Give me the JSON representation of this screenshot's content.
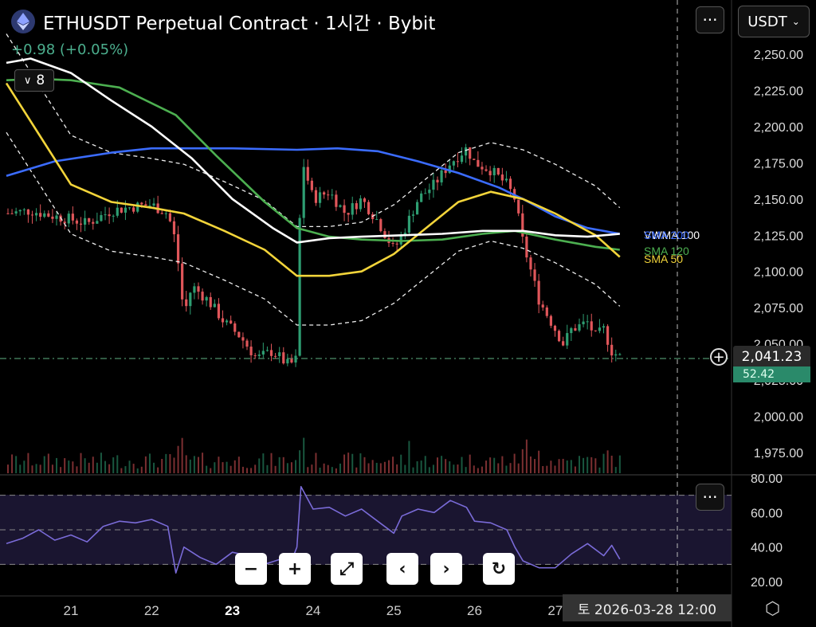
{
  "header": {
    "title": "ETHUSDT Perpetual Contract · 1시간 · Bybit",
    "change": "+0.98 (+0.05%)",
    "interval_label": "8",
    "currency_label": "USDT",
    "menu_symbol": "···"
  },
  "price_axis": {
    "ticks": [
      "2,250.00",
      "2,225.00",
      "2,200.00",
      "2,175.00",
      "2,150.00",
      "2,125.00",
      "2,100.00",
      "2,075.00",
      "2,050.00",
      "2,025.00",
      "2,000.00",
      "1,975.00"
    ],
    "ylim": [
      1965,
      2262
    ],
    "current_price": "2,041.23",
    "volume_label": "52.42"
  },
  "rsi_axis": {
    "ticks": [
      "80.00",
      "60.00",
      "40.00",
      "20.00"
    ],
    "ylim": [
      17,
      82
    ],
    "bands": [
      70,
      50,
      30
    ]
  },
  "time_axis": {
    "labels": [
      {
        "text": "21",
        "day": 21,
        "bold": false
      },
      {
        "text": "22",
        "day": 22,
        "bold": false
      },
      {
        "text": "23",
        "day": 23,
        "bold": true
      },
      {
        "text": "24",
        "day": 24,
        "bold": false
      },
      {
        "text": "25",
        "day": 25,
        "bold": false
      },
      {
        "text": "26",
        "day": 26,
        "bold": false
      },
      {
        "text": "27",
        "day": 27,
        "bold": false
      }
    ],
    "crosshair_label": "토 2026-03-28  12:00"
  },
  "legend": [
    {
      "name": "VWMA 100",
      "color": "#ffffff"
    },
    {
      "name": "SMA 200",
      "color": "#3b6cff"
    },
    {
      "name": "SMA 120",
      "color": "#4caf50"
    },
    {
      "name": "SMA 50",
      "color": "#f2d43a"
    }
  ],
  "toolbar": {
    "zoom_out": "−",
    "zoom_in": "+",
    "fullscreen": "⤢",
    "scroll_left": "‹",
    "scroll_right": "›",
    "reset": "↻"
  },
  "colors": {
    "up": "#2e9e72",
    "down": "#e0565a",
    "sma200": "#3b6cff",
    "sma120": "#4caf50",
    "sma50": "#f2d43a",
    "vwma100": "#ffffff",
    "rsi": "#7a6bd8"
  },
  "chart_data": [
    {
      "type": "line",
      "title": "",
      "x_unit": "day of March 2026",
      "xlim": [
        20.15,
        28.6
      ],
      "ylim": [
        1965,
        2262
      ],
      "series": [
        {
          "name": "price",
          "points": [
            [
              20.2,
              2140
            ],
            [
              20.5,
              2142
            ],
            [
              20.8,
              2138
            ],
            [
              21.0,
              2136
            ],
            [
              21.2,
              2133
            ],
            [
              21.5,
              2142
            ],
            [
              21.8,
              2145
            ],
            [
              22.0,
              2146
            ],
            [
              22.2,
              2140
            ],
            [
              22.3,
              2120
            ],
            [
              22.4,
              2070
            ],
            [
              22.5,
              2090
            ],
            [
              22.7,
              2080
            ],
            [
              22.9,
              2065
            ],
            [
              23.1,
              2055
            ],
            [
              23.3,
              2040
            ],
            [
              23.5,
              2045
            ],
            [
              23.7,
              2035
            ],
            [
              23.8,
              2040
            ],
            [
              23.85,
              2180
            ],
            [
              24.0,
              2150
            ],
            [
              24.2,
              2155
            ],
            [
              24.4,
              2140
            ],
            [
              24.6,
              2150
            ],
            [
              24.8,
              2135
            ],
            [
              25.0,
              2115
            ],
            [
              25.1,
              2125
            ],
            [
              25.3,
              2150
            ],
            [
              25.5,
              2160
            ],
            [
              25.7,
              2175
            ],
            [
              25.9,
              2185
            ],
            [
              26.0,
              2175
            ],
            [
              26.2,
              2170
            ],
            [
              26.4,
              2160
            ],
            [
              26.5,
              2150
            ],
            [
              26.6,
              2120
            ],
            [
              26.7,
              2100
            ],
            [
              26.8,
              2080
            ],
            [
              26.9,
              2070
            ],
            [
              27.0,
              2060
            ],
            [
              27.1,
              2050
            ],
            [
              27.2,
              2060
            ],
            [
              27.4,
              2065
            ],
            [
              27.5,
              2055
            ],
            [
              27.6,
              2060
            ],
            [
              27.7,
              2045
            ],
            [
              27.8,
              2041
            ]
          ]
        },
        {
          "name": "SMA 200",
          "points": [
            [
              20.2,
              2166
            ],
            [
              20.8,
              2176
            ],
            [
              21.5,
              2182
            ],
            [
              22.0,
              2185
            ],
            [
              23.0,
              2185
            ],
            [
              23.8,
              2184
            ],
            [
              24.3,
              2185
            ],
            [
              24.8,
              2183
            ],
            [
              25.3,
              2176
            ],
            [
              25.8,
              2168
            ],
            [
              26.3,
              2158
            ],
            [
              26.6,
              2150
            ],
            [
              27.0,
              2138
            ],
            [
              27.4,
              2130
            ],
            [
              27.8,
              2126
            ]
          ]
        },
        {
          "name": "SMA 120",
          "points": [
            [
              20.2,
              2232
            ],
            [
              20.6,
              2233
            ],
            [
              21.0,
              2232
            ],
            [
              21.6,
              2227
            ],
            [
              22.3,
              2208
            ],
            [
              22.8,
              2180
            ],
            [
              23.4,
              2148
            ],
            [
              23.8,
              2130
            ],
            [
              24.2,
              2124
            ],
            [
              24.6,
              2122
            ],
            [
              25.1,
              2121
            ],
            [
              25.6,
              2122
            ],
            [
              26.1,
              2126
            ],
            [
              26.5,
              2128
            ],
            [
              27.0,
              2122
            ],
            [
              27.5,
              2117
            ],
            [
              27.8,
              2115
            ]
          ]
        },
        {
          "name": "SMA 50",
          "points": [
            [
              20.2,
              2230
            ],
            [
              20.6,
              2195
            ],
            [
              21.0,
              2160
            ],
            [
              21.5,
              2148
            ],
            [
              22.0,
              2144
            ],
            [
              22.4,
              2140
            ],
            [
              22.9,
              2128
            ],
            [
              23.4,
              2115
            ],
            [
              23.8,
              2097
            ],
            [
              24.2,
              2097
            ],
            [
              24.6,
              2100
            ],
            [
              25.0,
              2112
            ],
            [
              25.4,
              2130
            ],
            [
              25.8,
              2148
            ],
            [
              26.2,
              2155
            ],
            [
              26.6,
              2150
            ],
            [
              27.0,
              2140
            ],
            [
              27.5,
              2125
            ],
            [
              27.8,
              2110
            ]
          ]
        },
        {
          "name": "VWMA 100",
          "points": [
            [
              20.2,
              2244
            ],
            [
              20.5,
              2247
            ],
            [
              21.0,
              2237
            ],
            [
              21.5,
              2218
            ],
            [
              22.0,
              2200
            ],
            [
              22.5,
              2178
            ],
            [
              23.0,
              2150
            ],
            [
              23.5,
              2130
            ],
            [
              23.8,
              2120
            ],
            [
              24.2,
              2123
            ],
            [
              24.6,
              2124
            ],
            [
              25.1,
              2125
            ],
            [
              25.6,
              2126
            ],
            [
              26.1,
              2128
            ],
            [
              26.6,
              2128
            ],
            [
              27.0,
              2125
            ],
            [
              27.4,
              2124
            ],
            [
              27.8,
              2126
            ]
          ]
        }
      ]
    },
    {
      "type": "line",
      "title": "",
      "xlim": [
        20.15,
        28.6
      ],
      "ylim": [
        17,
        82
      ],
      "series": [
        {
          "name": "RSI",
          "points": [
            [
              20.2,
              42
            ],
            [
              20.4,
              45
            ],
            [
              20.6,
              50
            ],
            [
              20.8,
              44
            ],
            [
              21.0,
              47
            ],
            [
              21.2,
              43
            ],
            [
              21.4,
              52
            ],
            [
              21.6,
              55
            ],
            [
              21.8,
              54
            ],
            [
              22.0,
              56
            ],
            [
              22.2,
              52
            ],
            [
              22.3,
              25
            ],
            [
              22.4,
              40
            ],
            [
              22.6,
              34
            ],
            [
              22.8,
              30
            ],
            [
              23.0,
              37
            ],
            [
              23.2,
              35
            ],
            [
              23.4,
              30
            ],
            [
              23.6,
              33
            ],
            [
              23.7,
              28
            ],
            [
              23.8,
              40
            ],
            [
              23.85,
              75
            ],
            [
              24.0,
              62
            ],
            [
              24.2,
              63
            ],
            [
              24.4,
              58
            ],
            [
              24.6,
              62
            ],
            [
              24.8,
              55
            ],
            [
              25.0,
              48
            ],
            [
              25.1,
              58
            ],
            [
              25.3,
              62
            ],
            [
              25.5,
              60
            ],
            [
              25.7,
              67
            ],
            [
              25.9,
              63
            ],
            [
              26.0,
              55
            ],
            [
              26.2,
              54
            ],
            [
              26.4,
              50
            ],
            [
              26.5,
              40
            ],
            [
              26.6,
              32
            ],
            [
              26.8,
              28
            ],
            [
              27.0,
              28
            ],
            [
              27.2,
              36
            ],
            [
              27.4,
              42
            ],
            [
              27.6,
              35
            ],
            [
              27.7,
              41
            ],
            [
              27.8,
              33
            ]
          ]
        }
      ]
    }
  ]
}
